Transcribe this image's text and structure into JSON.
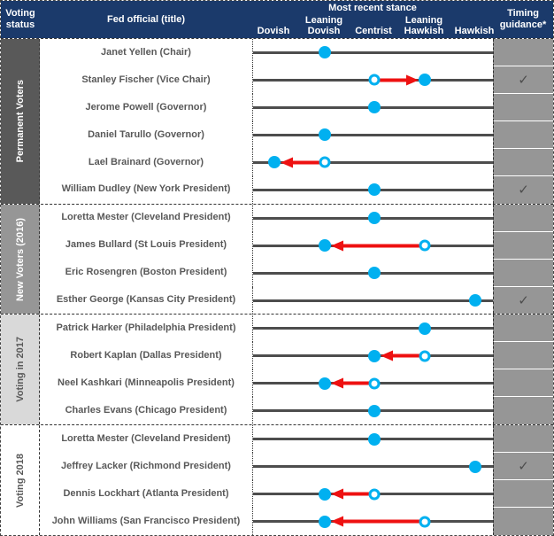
{
  "header": {
    "voting_status": "Voting status",
    "fed_official": "Fed official (title)",
    "stance_title": "Most recent stance",
    "stance_levels": [
      "Dovish",
      "Leaning\nDovish",
      "Centrist",
      "Leaning\nHawkish",
      "Hawkish"
    ],
    "timing": "Timing guidance*"
  },
  "icons": {
    "check": "✓"
  },
  "colors": {
    "header_bg": "#1b3a6b",
    "header_text": "#ffffff",
    "track": "#4d4d4d",
    "dot": "#00b0f0",
    "arrow_red": "#ee1111",
    "name_text": "#595959",
    "timing_cell_bg": "#969696",
    "check": "#4d4d4d",
    "group_dark_bg": "#595959",
    "group_medium_bg": "#969696",
    "group_light_bg": "#d9d9d9",
    "group_white_bg": "#ffffff",
    "group_light_text": "#ffffff",
    "group_dark_text": "#595959"
  },
  "chart_data": {
    "type": "scatter",
    "title": "Most recent stance",
    "x_categories": [
      "Dovish",
      "Leaning Dovish",
      "Centrist",
      "Leaning Hawkish",
      "Hawkish"
    ],
    "x_index_range": [
      0,
      4
    ],
    "note": "filled dot = current stance; open dot + red arrow = previous stance and direction of change; check = timing guidance",
    "groups": [
      {
        "label": "Permanent Voters",
        "label_bg": "#595959",
        "label_text": "#ffffff",
        "members": [
          {
            "name": "Janet Yellen (Chair)",
            "stance": 1,
            "stance_label": "Leaning Dovish",
            "prev_stance": null,
            "timing_guidance": false
          },
          {
            "name": "Stanley Fischer (Vice Chair)",
            "stance": 3,
            "stance_label": "Leaning Hawkish",
            "prev_stance": 2,
            "prev_stance_label": "Centrist",
            "timing_guidance": true
          },
          {
            "name": "Jerome Powell (Governor)",
            "stance": 2,
            "stance_label": "Centrist",
            "prev_stance": null,
            "timing_guidance": false
          },
          {
            "name": "Daniel Tarullo (Governor)",
            "stance": 1,
            "stance_label": "Leaning Dovish",
            "prev_stance": null,
            "timing_guidance": false
          },
          {
            "name": "Lael Brainard (Governor)",
            "stance": 0,
            "stance_label": "Dovish",
            "prev_stance": 1,
            "prev_stance_label": "Leaning Dovish",
            "timing_guidance": false
          },
          {
            "name": "William Dudley (New York President)",
            "stance": 2,
            "stance_label": "Centrist",
            "prev_stance": null,
            "timing_guidance": true
          }
        ]
      },
      {
        "label": "New Voters (2016)",
        "label_bg": "#969696",
        "label_text": "#ffffff",
        "members": [
          {
            "name": "Loretta Mester (Cleveland President)",
            "stance": 2,
            "stance_label": "Centrist",
            "prev_stance": null,
            "timing_guidance": false
          },
          {
            "name": "James Bullard (St Louis President)",
            "stance": 1,
            "stance_label": "Leaning Dovish",
            "prev_stance": 3,
            "prev_stance_label": "Leaning Hawkish",
            "timing_guidance": false
          },
          {
            "name": "Eric Rosengren (Boston President)",
            "stance": 2,
            "stance_label": "Centrist",
            "prev_stance": null,
            "timing_guidance": false
          },
          {
            "name": "Esther George (Kansas City President)",
            "stance": 4,
            "stance_label": "Hawkish",
            "prev_stance": null,
            "timing_guidance": true
          }
        ]
      },
      {
        "label": "Voting in 2017",
        "label_bg": "#d9d9d9",
        "label_text": "#595959",
        "members": [
          {
            "name": "Patrick Harker (Philadelphia President)",
            "stance": 3,
            "stance_label": "Leaning Hawkish",
            "prev_stance": null,
            "timing_guidance": false
          },
          {
            "name": "Robert Kaplan (Dallas President)",
            "stance": 2,
            "stance_label": "Centrist",
            "prev_stance": 3,
            "prev_stance_label": "Leaning Hawkish",
            "timing_guidance": false
          },
          {
            "name": "Neel Kashkari (Minneapolis President)",
            "stance": 1,
            "stance_label": "Leaning Dovish",
            "prev_stance": 2,
            "prev_stance_label": "Centrist",
            "timing_guidance": false
          },
          {
            "name": "Charles Evans (Chicago President)",
            "stance": 2,
            "stance_label": "Centrist",
            "prev_stance": null,
            "timing_guidance": false
          }
        ]
      },
      {
        "label": "Voting 2018",
        "label_bg": "#ffffff",
        "label_text": "#595959",
        "members": [
          {
            "name": "Loretta Mester (Cleveland President)",
            "stance": 2,
            "stance_label": "Centrist",
            "prev_stance": null,
            "timing_guidance": false
          },
          {
            "name": "Jeffrey Lacker (Richmond President)",
            "stance": 4,
            "stance_label": "Hawkish",
            "prev_stance": null,
            "timing_guidance": true
          },
          {
            "name": "Dennis Lockhart (Atlanta President)",
            "stance": 1,
            "stance_label": "Leaning Dovish",
            "prev_stance": 2,
            "prev_stance_label": "Centrist",
            "timing_guidance": false
          },
          {
            "name": "John Williams (San Francisco President)",
            "stance": 1,
            "stance_label": "Leaning Dovish",
            "prev_stance": 3,
            "prev_stance_label": "Leaning Hawkish",
            "timing_guidance": false
          }
        ]
      }
    ]
  }
}
